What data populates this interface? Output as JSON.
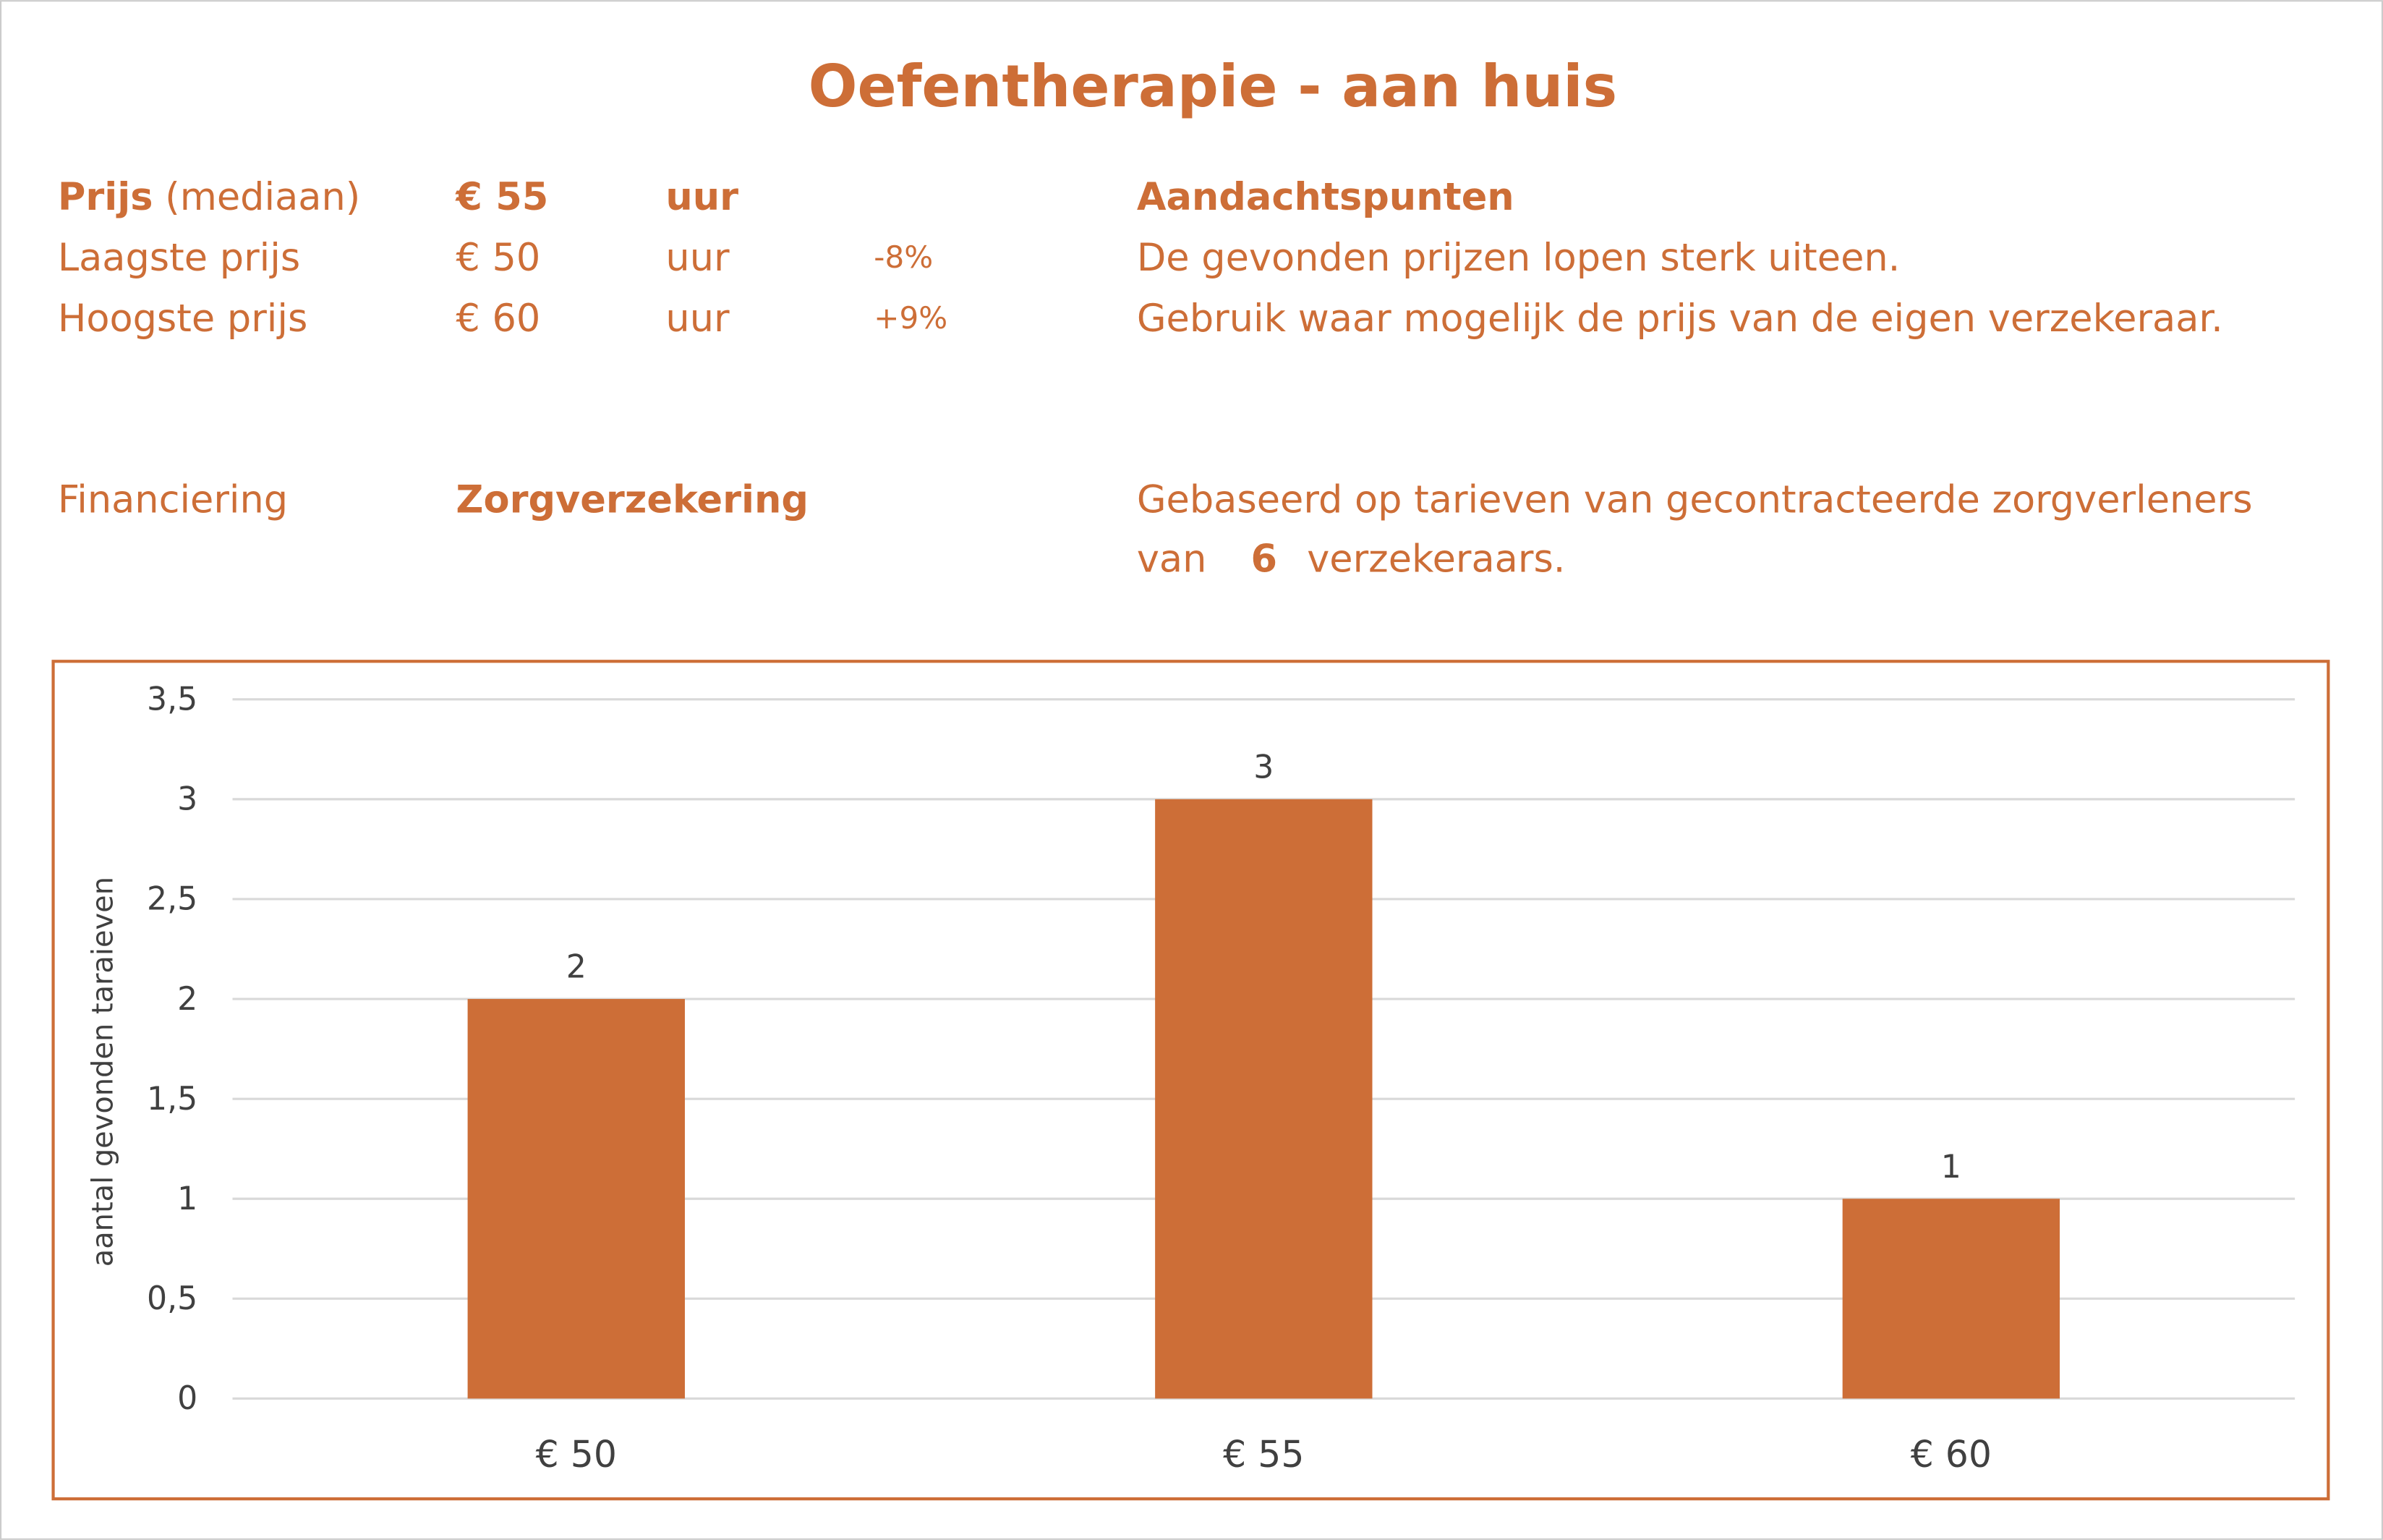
{
  "header": {
    "title": "Oefentherapie - aan huis"
  },
  "prices": {
    "rows": [
      {
        "label": "Prijs",
        "label_note": "(mediaan)",
        "price": "€ 55",
        "unit": "uur"
      },
      {
        "label": "Laagste prijs",
        "price": "€ 50",
        "unit": "uur",
        "diff": "-8%"
      },
      {
        "label": "Hoogste prijs",
        "price": "€ 60",
        "unit": "uur",
        "diff": "+9%"
      }
    ]
  },
  "notes": {
    "title": "Aandachtspunten",
    "lines": [
      "De gevonden prijzen lopen sterk uiteen.",
      "Gebruik waar mogelijk de prijs van de eigen verzekeraar."
    ]
  },
  "financing": {
    "label": "Financiering",
    "value": "Zorgverzekering"
  },
  "source": {
    "line1": "Gebaseerd op tarieven van gecontracteerde zorgverleners",
    "line2_start": "van",
    "insurer_count": "6",
    "line2_end": "verzekeraars."
  },
  "chart_data": {
    "type": "bar",
    "y_label": "aantal gevonden taraieven",
    "categories": [
      "€ 50",
      "€ 55",
      "€ 60"
    ],
    "values": [
      2,
      3,
      1
    ],
    "color": "#cd6e37",
    "ylim": [
      0,
      3.5
    ],
    "yticks": [
      0,
      {
        "value": 0.5,
        "label": "0,5"
      },
      1,
      {
        "value": 1.5,
        "label": "1,5"
      },
      2,
      {
        "value": 2.5,
        "label": "2,5"
      },
      3,
      {
        "value": 3.5,
        "label": "3,5"
      }
    ],
    "grid": true
  }
}
